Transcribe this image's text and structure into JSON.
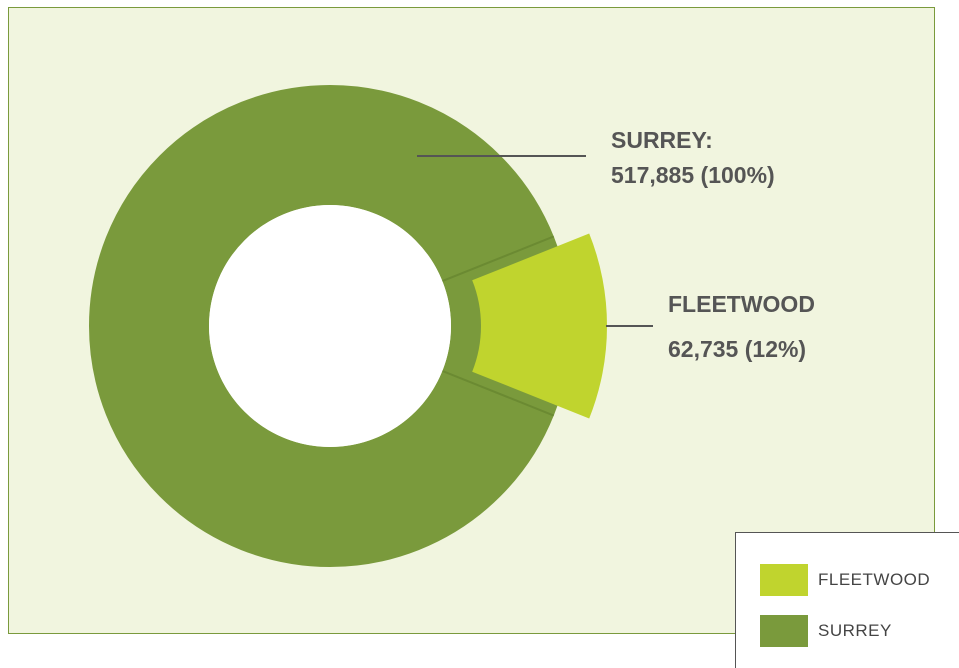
{
  "chart_data": {
    "type": "pie",
    "variant": "donut",
    "slices": [
      {
        "name": "SURREY",
        "label_line1": "SURREY:",
        "label_line2": "517,885 (100%)",
        "value": 517885,
        "percent": 100,
        "color": "#7a9a3c"
      },
      {
        "name": "FLEETWOOD",
        "label_line1": "FLEETWOOD",
        "label_line2": "62,735 (12%)",
        "value": 62735,
        "percent": 12,
        "color": "#c0d42e"
      }
    ],
    "legend": {
      "position": "bottom-right",
      "items": [
        {
          "label": "FLEETWOOD",
          "color": "#c0d42e"
        },
        {
          "label": "SURREY",
          "color": "#7a9a3c"
        }
      ]
    }
  },
  "colors": {
    "panel_background": "#f1f5df",
    "panel_border": "#7a9a3c",
    "callout_text": "#555555",
    "leader_line": "#555555"
  }
}
